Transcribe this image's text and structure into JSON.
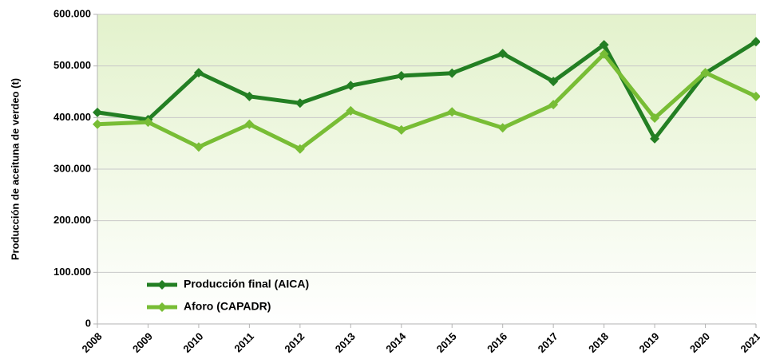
{
  "chart_data": {
    "type": "line",
    "y_label": "Producción de aceituna de verdeo (t)",
    "categories": [
      "2008",
      "2009",
      "2010",
      "2011",
      "2012",
      "2013",
      "2014",
      "2015",
      "2016",
      "2017",
      "2018",
      "2019",
      "2020",
      "2021"
    ],
    "series": [
      {
        "name": "Producción final (AICA)",
        "color": "#237f23",
        "values": [
          410000,
          396000,
          487000,
          441000,
          428000,
          462000,
          481000,
          486000,
          524000,
          470000,
          541000,
          359000,
          486000,
          547000
        ]
      },
      {
        "name": "Aforo (CAPADR)",
        "color": "#78bd35",
        "values": [
          387000,
          391000,
          343000,
          387000,
          339000,
          413000,
          376000,
          411000,
          380000,
          425000,
          523000,
          399000,
          487000,
          441000
        ]
      }
    ],
    "ylim": [
      0,
      600000
    ],
    "yticks": [
      0,
      {
        "value": 100000,
        "label": "100.000"
      },
      {
        "value": 200000,
        "label": "200.000"
      },
      {
        "value": 300000,
        "label": "300.000"
      },
      {
        "value": 400000,
        "label": "400.000"
      },
      {
        "value": 500000,
        "label": "500.000"
      },
      {
        "value": 600000,
        "label": "600.000"
      }
    ],
    "grid": true,
    "legend": "lower left"
  }
}
